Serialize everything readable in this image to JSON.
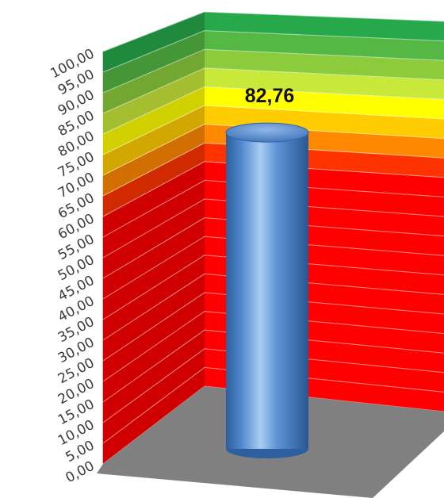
{
  "chart_data": {
    "type": "bar",
    "style": "3d-cylinder",
    "categories": [
      ""
    ],
    "series": [
      {
        "values": [
          82.76
        ]
      }
    ],
    "data_labels": [
      "82,76"
    ],
    "ylim": [
      0,
      100
    ],
    "ytick_step": 5,
    "ytick_labels": [
      "0,00",
      "5,00",
      "10,00",
      "15,00",
      "20,00",
      "25,00",
      "30,00",
      "35,00",
      "40,00",
      "45,00",
      "50,00",
      "55,00",
      "60,00",
      "65,00",
      "70,00",
      "75,00",
      "80,00",
      "85,00",
      "90,00",
      "95,00",
      "100,00"
    ],
    "grid": true,
    "legend": "none",
    "title": "",
    "xlabel": "",
    "ylabel": "",
    "colors": {
      "bar": "#4f86cc",
      "wall_bands": [
        "#ff0000",
        "#ff0000",
        "#ff0000",
        "#ff0000",
        "#ff0000",
        "#ff0000",
        "#ff0000",
        "#ff0000",
        "#ff0000",
        "#ff0000",
        "#ff0000",
        "#ff0000",
        "#ff3300",
        "#ff8800",
        "#ffcc00",
        "#ffff00",
        "#c8e83a",
        "#8ccc3c",
        "#55b844",
        "#27a84a"
      ],
      "floor": "#808080",
      "gridline": "#ffffff"
    }
  }
}
